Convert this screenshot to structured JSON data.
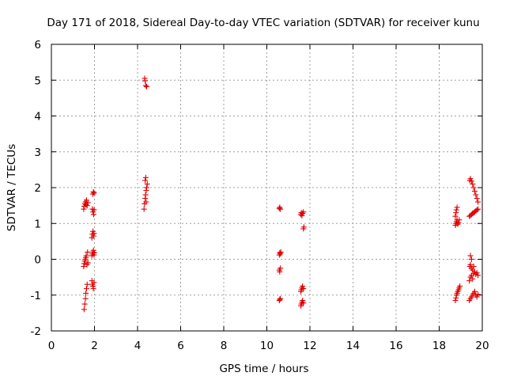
{
  "chart_data": {
    "type": "scatter",
    "title": "Day 171 of 2018, Sidereal Day-to-day VTEC variation (SDTVAR) for receiver kunu",
    "xlabel": "GPS time / hours",
    "ylabel": "SDTVAR / TECUs",
    "xlim": [
      0,
      20
    ],
    "ylim": [
      -2,
      6
    ],
    "x_ticks": [
      "0",
      "2",
      "4",
      "6",
      "8",
      "10",
      "12",
      "14",
      "16",
      "18",
      "20"
    ],
    "y_ticks": [
      "-2",
      "-1",
      "0",
      "1",
      "2",
      "3",
      "4",
      "5",
      "6"
    ],
    "grid": true,
    "marker": "+",
    "marker_color": "#e00000",
    "series": [
      {
        "name": "SDTVAR",
        "points": [
          [
            1.52,
            -1.4
          ],
          [
            1.55,
            -1.25
          ],
          [
            1.58,
            -1.1
          ],
          [
            1.6,
            -0.95
          ],
          [
            1.63,
            -0.82
          ],
          [
            1.66,
            -0.7
          ],
          [
            1.5,
            -0.2
          ],
          [
            1.52,
            -0.12
          ],
          [
            1.55,
            -0.05
          ],
          [
            1.57,
            0.0
          ],
          [
            1.6,
            0.05
          ],
          [
            1.62,
            0.1
          ],
          [
            1.65,
            -0.15
          ],
          [
            1.68,
            0.2
          ],
          [
            1.7,
            -0.1
          ],
          [
            1.5,
            1.4
          ],
          [
            1.52,
            1.48
          ],
          [
            1.55,
            1.55
          ],
          [
            1.58,
            1.6
          ],
          [
            1.6,
            1.52
          ],
          [
            1.63,
            1.65
          ],
          [
            1.66,
            1.5
          ],
          [
            1.7,
            1.58
          ],
          [
            1.88,
            -0.6
          ],
          [
            1.9,
            -0.7
          ],
          [
            1.93,
            -0.75
          ],
          [
            1.95,
            -0.82
          ],
          [
            1.98,
            -0.65
          ],
          [
            1.88,
            0.1
          ],
          [
            1.9,
            0.15
          ],
          [
            1.93,
            0.2
          ],
          [
            1.95,
            0.25
          ],
          [
            1.98,
            0.12
          ],
          [
            2.0,
            0.18
          ],
          [
            1.88,
            0.6
          ],
          [
            1.9,
            0.7
          ],
          [
            1.93,
            0.78
          ],
          [
            1.96,
            0.65
          ],
          [
            1.98,
            0.72
          ],
          [
            1.9,
            1.4
          ],
          [
            1.93,
            1.32
          ],
          [
            1.96,
            1.25
          ],
          [
            1.98,
            1.38
          ],
          [
            1.92,
            1.82
          ],
          [
            1.95,
            1.88
          ],
          [
            1.98,
            1.85
          ],
          [
            4.3,
            1.4
          ],
          [
            4.32,
            1.55
          ],
          [
            4.35,
            1.7
          ],
          [
            4.37,
            1.8
          ],
          [
            4.4,
            1.92
          ],
          [
            4.42,
            2.0
          ],
          [
            4.45,
            2.1
          ],
          [
            4.35,
            2.2
          ],
          [
            4.38,
            2.28
          ],
          [
            4.4,
            1.6
          ],
          [
            4.33,
            5.05
          ],
          [
            4.35,
            4.98
          ],
          [
            4.38,
            4.85
          ],
          [
            4.42,
            4.82
          ],
          [
            10.58,
            -1.15
          ],
          [
            10.6,
            -1.12
          ],
          [
            10.63,
            -1.1
          ],
          [
            10.58,
            -0.3
          ],
          [
            10.6,
            -0.35
          ],
          [
            10.63,
            -0.25
          ],
          [
            10.58,
            0.12
          ],
          [
            10.6,
            0.18
          ],
          [
            10.63,
            0.15
          ],
          [
            10.65,
            0.2
          ],
          [
            10.58,
            1.42
          ],
          [
            10.6,
            1.45
          ],
          [
            10.63,
            1.4
          ],
          [
            11.58,
            -1.3
          ],
          [
            11.6,
            -1.25
          ],
          [
            11.63,
            -1.2
          ],
          [
            11.66,
            -1.15
          ],
          [
            11.7,
            -1.22
          ],
          [
            11.58,
            -0.9
          ],
          [
            11.6,
            -0.85
          ],
          [
            11.63,
            -0.8
          ],
          [
            11.66,
            -0.75
          ],
          [
            11.7,
            -0.82
          ],
          [
            11.7,
            0.85
          ],
          [
            11.72,
            0.9
          ],
          [
            11.58,
            1.25
          ],
          [
            11.6,
            1.3
          ],
          [
            11.63,
            1.22
          ],
          [
            11.66,
            1.28
          ],
          [
            11.7,
            1.32
          ],
          [
            18.75,
            -1.15
          ],
          [
            18.78,
            -1.08
          ],
          [
            18.8,
            -1.0
          ],
          [
            18.83,
            -0.95
          ],
          [
            18.86,
            -0.9
          ],
          [
            18.9,
            -0.85
          ],
          [
            18.93,
            -0.8
          ],
          [
            18.96,
            -0.75
          ],
          [
            18.75,
            0.95
          ],
          [
            18.78,
            1.0
          ],
          [
            18.8,
            1.05
          ],
          [
            18.83,
            1.1
          ],
          [
            18.86,
            0.98
          ],
          [
            18.9,
            1.02
          ],
          [
            18.93,
            1.1
          ],
          [
            18.75,
            1.2
          ],
          [
            18.78,
            1.3
          ],
          [
            18.8,
            1.38
          ],
          [
            18.83,
            1.45
          ],
          [
            19.4,
            -1.15
          ],
          [
            19.45,
            -1.1
          ],
          [
            19.5,
            -1.05
          ],
          [
            19.55,
            -1.0
          ],
          [
            19.6,
            -0.95
          ],
          [
            19.65,
            -0.9
          ],
          [
            19.7,
            -1.0
          ],
          [
            19.75,
            -1.05
          ],
          [
            19.8,
            -0.98
          ],
          [
            19.4,
            -0.6
          ],
          [
            19.45,
            -0.5
          ],
          [
            19.5,
            -0.45
          ],
          [
            19.55,
            -0.55
          ],
          [
            19.6,
            -0.4
          ],
          [
            19.65,
            -0.35
          ],
          [
            19.7,
            -0.42
          ],
          [
            19.75,
            -0.38
          ],
          [
            19.8,
            -0.45
          ],
          [
            19.42,
            -0.2
          ],
          [
            19.45,
            -0.15
          ],
          [
            19.5,
            -0.25
          ],
          [
            19.55,
            -0.3
          ],
          [
            19.6,
            -0.2
          ],
          [
            19.45,
            0.1
          ],
          [
            19.5,
            0.0
          ],
          [
            19.4,
            1.2
          ],
          [
            19.45,
            1.22
          ],
          [
            19.5,
            1.25
          ],
          [
            19.55,
            1.28
          ],
          [
            19.6,
            1.3
          ],
          [
            19.65,
            1.32
          ],
          [
            19.7,
            1.35
          ],
          [
            19.75,
            1.38
          ],
          [
            19.8,
            1.4
          ],
          [
            19.42,
            2.2
          ],
          [
            19.45,
            2.25
          ],
          [
            19.5,
            2.18
          ],
          [
            19.55,
            2.1
          ],
          [
            19.6,
            2.0
          ],
          [
            19.65,
            1.9
          ],
          [
            19.7,
            1.8
          ],
          [
            19.75,
            1.7
          ],
          [
            19.8,
            1.6
          ]
        ]
      }
    ]
  }
}
